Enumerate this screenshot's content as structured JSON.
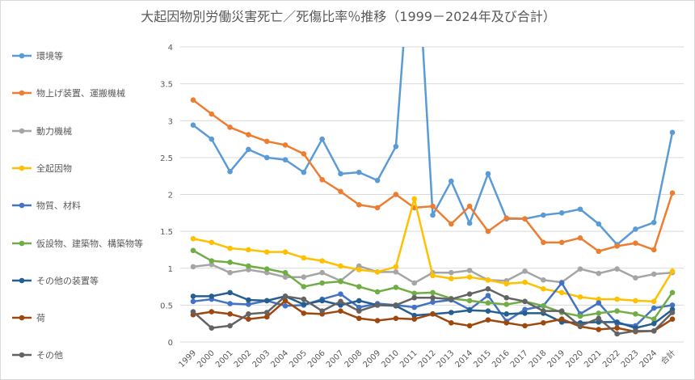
{
  "chart_data": {
    "type": "line",
    "title": "大起因物別労働災害死亡／死傷比率％推移（1999－2024年及び合計）",
    "xlabel": "",
    "ylabel": "",
    "ylim": [
      0,
      4
    ],
    "yticks": [
      "0",
      "0.5",
      "1",
      "1.5",
      "2",
      "2.5",
      "3",
      "3.5",
      "4"
    ],
    "grid": true,
    "legend": "left",
    "categories": [
      "1999",
      "2000",
      "2001",
      "2002",
      "2003",
      "2004",
      "2005",
      "2006",
      "2007",
      "2008",
      "2009",
      "2010",
      "2011",
      "2012",
      "2013",
      "2014",
      "2015",
      "2016",
      "2017",
      "2018",
      "2019",
      "2020",
      "2021",
      "2022",
      "2023",
      "2024",
      "合計"
    ],
    "series": [
      {
        "name": "環境等",
        "color": "#5B9BD5",
        "values": [
          2.94,
          2.75,
          2.31,
          2.61,
          2.5,
          2.47,
          2.3,
          2.75,
          2.28,
          2.3,
          2.19,
          2.65,
          6.0,
          1.72,
          2.18,
          1.61,
          2.28,
          1.67,
          1.67,
          1.72,
          1.75,
          1.8,
          1.6,
          1.32,
          1.53,
          1.62,
          2.84
        ]
      },
      {
        "name": "物上げ装置、運搬機械",
        "color": "#ED7D31",
        "values": [
          3.28,
          3.09,
          2.91,
          2.81,
          2.72,
          2.67,
          2.55,
          2.2,
          2.04,
          1.86,
          1.82,
          2.0,
          1.82,
          1.84,
          1.6,
          1.84,
          1.5,
          1.68,
          1.67,
          1.35,
          1.35,
          1.41,
          1.23,
          1.3,
          1.34,
          1.25,
          2.02
        ]
      },
      {
        "name": "動力機械",
        "color": "#A5A5A5",
        "values": [
          1.02,
          1.05,
          0.94,
          0.98,
          0.94,
          0.88,
          0.88,
          0.94,
          0.83,
          1.03,
          0.95,
          0.95,
          0.8,
          0.94,
          0.94,
          0.97,
          0.84,
          0.83,
          0.96,
          0.84,
          0.81,
          0.99,
          0.93,
          0.99,
          0.87,
          0.92,
          0.94
        ]
      },
      {
        "name": "全起因物",
        "color": "#FFC000",
        "values": [
          1.4,
          1.35,
          1.27,
          1.25,
          1.22,
          1.22,
          1.14,
          1.1,
          1.03,
          0.98,
          0.95,
          1.02,
          1.94,
          0.9,
          0.86,
          0.88,
          0.84,
          0.79,
          0.81,
          0.72,
          0.67,
          0.61,
          0.58,
          0.58,
          0.56,
          0.55,
          0.96
        ]
      },
      {
        "name": "物質、材料",
        "color": "#4472C4",
        "values": [
          0.55,
          0.58,
          0.52,
          0.51,
          0.56,
          0.49,
          0.5,
          0.58,
          0.65,
          0.47,
          0.52,
          0.5,
          0.47,
          0.54,
          0.57,
          0.44,
          0.63,
          0.28,
          0.44,
          0.49,
          0.8,
          0.38,
          0.53,
          0.25,
          0.22,
          0.46,
          0.5
        ]
      },
      {
        "name": "仮設物、建築物、構築物等",
        "color": "#70AD47",
        "values": [
          1.24,
          1.1,
          1.08,
          1.03,
          0.99,
          0.94,
          0.75,
          0.8,
          0.82,
          0.75,
          0.68,
          0.74,
          0.66,
          0.67,
          0.59,
          0.56,
          0.53,
          0.51,
          0.55,
          0.49,
          0.4,
          0.35,
          0.39,
          0.42,
          0.38,
          0.31,
          0.67
        ]
      },
      {
        "name": "その他の装置等",
        "color": "#255E91",
        "values": [
          0.62,
          0.62,
          0.67,
          0.57,
          0.56,
          0.62,
          0.51,
          0.56,
          0.5,
          0.56,
          0.5,
          0.49,
          0.36,
          0.38,
          0.4,
          0.43,
          0.42,
          0.38,
          0.39,
          0.39,
          0.27,
          0.26,
          0.27,
          0.27,
          0.19,
          0.25,
          0.44
        ]
      },
      {
        "name": "荷",
        "color": "#9E480E",
        "values": [
          0.37,
          0.41,
          0.38,
          0.31,
          0.34,
          0.56,
          0.39,
          0.38,
          0.42,
          0.32,
          0.29,
          0.32,
          0.31,
          0.38,
          0.26,
          0.22,
          0.3,
          0.26,
          0.22,
          0.26,
          0.31,
          0.21,
          0.17,
          0.19,
          0.14,
          0.15,
          0.31
        ]
      },
      {
        "name": "その他",
        "color": "#636363",
        "values": [
          0.41,
          0.19,
          0.22,
          0.38,
          0.4,
          0.62,
          0.58,
          0.42,
          0.55,
          0.42,
          0.5,
          0.5,
          0.6,
          0.6,
          0.58,
          0.65,
          0.72,
          0.6,
          0.55,
          0.42,
          0.42,
          0.22,
          0.32,
          0.11,
          0.15,
          0.15,
          0.4
        ]
      }
    ]
  }
}
